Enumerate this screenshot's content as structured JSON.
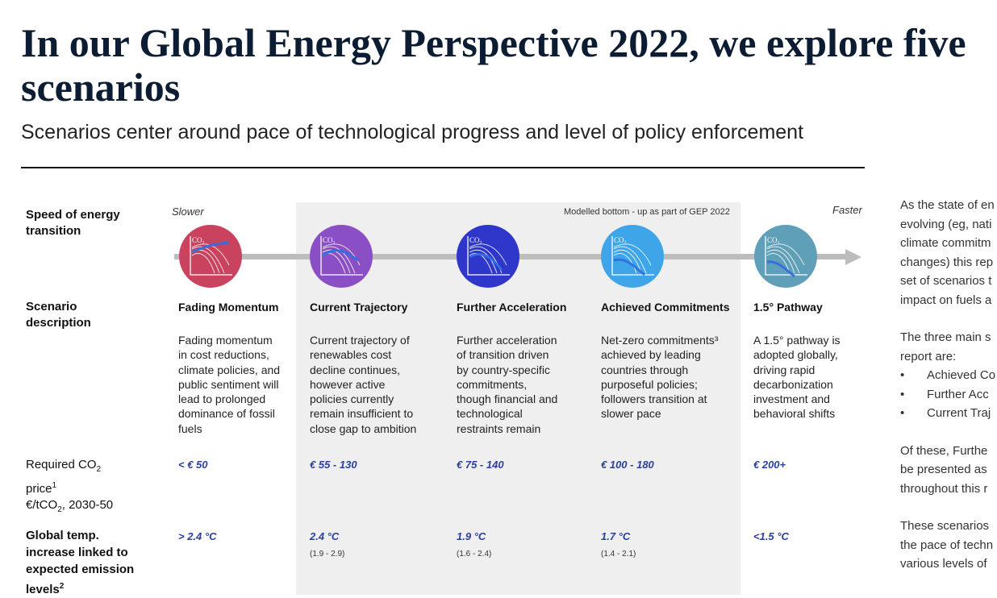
{
  "title": {
    "line1": "In our Global Energy Perspective 2022, we explore five",
    "line2": "scenarios"
  },
  "subtitle": "Scenarios center around pace of technological progress and level of policy enforcement",
  "chart": {
    "modelled_label": "Modelled bottom - up as part of GEP 2022",
    "slower_label": "Slower",
    "faster_label": "Faster",
    "row_labels": {
      "speed": [
        "Speed of energy",
        "transition"
      ],
      "description": [
        "Scenario",
        "description"
      ],
      "price_line1": "Required CO",
      "price_sub": "2",
      "price_line2": "price",
      "price_sup": "1",
      "price_unit_a": "€/tCO",
      "price_unit_sub": "2",
      "price_unit_b": ", 2030-50",
      "temp": [
        "Global temp.",
        "increase linked to",
        "expected emission",
        "levels"
      ],
      "temp_sup": "2"
    },
    "icon_label": "CO",
    "icon_label_sub": "2",
    "scenarios": [
      {
        "name": "Fading Momentum",
        "color": "#c9435f",
        "desc": [
          "Fading momentum",
          "in cost reductions,",
          "climate policies, and",
          "public sentiment will",
          "lead to prolonged",
          "dominance of fossil",
          "fuels"
        ],
        "price": "< € 50",
        "temp": "> 2.4 °C",
        "range": ""
      },
      {
        "name": "Current Trajectory",
        "color": "#8a4fc4",
        "desc": [
          "Current trajectory of",
          "renewables cost",
          "decline continues,",
          "however  active",
          "policies currently",
          "remain insufficient to",
          "close gap to ambition"
        ],
        "price": "€ 55 - 130",
        "temp": "2.4 °C",
        "range": "(1.9 - 2.9)"
      },
      {
        "name": "Further Acceleration",
        "color": "#2e37c9",
        "desc": [
          "Further acceleration",
          "of transition driven",
          "by country-specific",
          "commitments,",
          "though financial and",
          "technological",
          "restraints remain"
        ],
        "price": "€ 75 - 140",
        "temp": "1.9 °C",
        "range": "(1.6 - 2.4)"
      },
      {
        "name": "Achieved Commitments",
        "color": "#3ea6e8",
        "desc": [
          "Net-zero commitments³",
          "achieved by leading",
          "countries through",
          "purposeful policies;",
          "followers transition at",
          "slower pace"
        ],
        "price": "€ 100 - 180",
        "temp": "1.7 °C",
        "range": "(1.4 - 2.1)"
      },
      {
        "name": "1.5° Pathway",
        "color": "#5f9fb7",
        "desc": [
          "A 1.5° pathway is",
          "adopted globally,",
          "driving rapid",
          "decarbonization",
          "investment and",
          "behavioral shifts"
        ],
        "price": "€ 200+",
        "temp": "<1.5 °C",
        "range": ""
      }
    ]
  },
  "sidebar": {
    "para1": [
      "As the state of en",
      "evolving (eg, nati",
      "climate commitm",
      "changes) this rep",
      "set of scenarios t",
      "impact on fuels a"
    ],
    "para2": [
      "The three main s",
      "report are:"
    ],
    "bullets": [
      "Achieved Co",
      "Further Acc",
      "Current Traj"
    ],
    "bullet_mark": "•",
    "para3": [
      "Of these, Furthe",
      "be presented as",
      "throughout this r"
    ],
    "para4": [
      "These scenarios",
      "the pace of techn",
      "various levels of"
    ]
  }
}
